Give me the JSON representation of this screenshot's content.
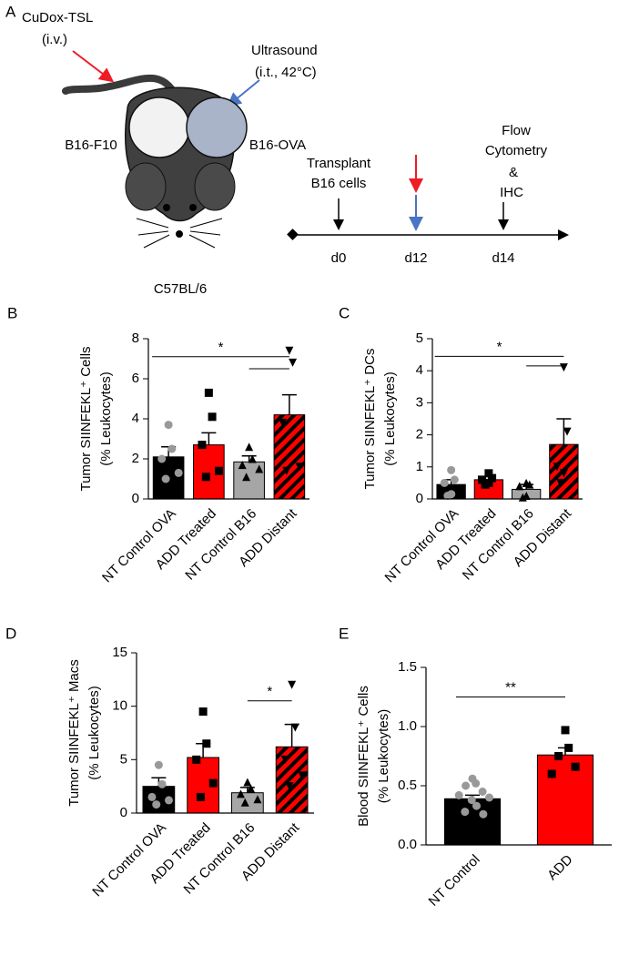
{
  "panel_a": {
    "label": "A",
    "drug": "CuDox-TSL",
    "drug_route": "(i.v.)",
    "ultrasound": "Ultrasound",
    "ultrasound_cond": "(i.t., 42°C)",
    "left_tumor": "B16-F10",
    "right_tumor": "B16-OVA",
    "strain": "C57BL/6",
    "timeline": [
      {
        "day": "d0",
        "event": [
          "Transplant",
          "B16 cells"
        ]
      },
      {
        "day": "d12",
        "event": []
      },
      {
        "day": "d14",
        "event": [
          "Flow",
          "Cytometry",
          "&",
          "IHC"
        ]
      }
    ]
  },
  "chart_data": [
    {
      "type": "bar",
      "panel": "B",
      "ylabel": [
        "Tumor SIINFEKL⁺ Cells",
        "(% Leukocytes)"
      ],
      "categories": [
        "NT Control OVA",
        "ADD Treated",
        "NT Control B16",
        "ADD Distant"
      ],
      "values": [
        2.1,
        2.7,
        1.85,
        4.2
      ],
      "errors": [
        0.5,
        0.6,
        0.3,
        1.0
      ],
      "colors": [
        "#000000",
        "#ff0000",
        "#a6a6a6",
        "#ff0000"
      ],
      "hatched": [
        false,
        false,
        false,
        true
      ],
      "markers": [
        "circle",
        "square",
        "triangle-up",
        "triangle-down"
      ],
      "point_colors": [
        "#999999",
        "#000000",
        "#000000",
        "#000000"
      ],
      "points": [
        [
          3.7,
          2.5,
          2.0,
          1.3,
          1.0
        ],
        [
          5.3,
          4.1,
          2.7,
          1.4,
          1.1
        ],
        [
          2.6,
          2.0,
          1.7,
          1.5,
          1.1
        ],
        [
          7.4,
          6.8,
          3.8,
          1.6,
          1.4
        ]
      ],
      "ylim": [
        0,
        8
      ],
      "yticks": [
        0,
        2,
        4,
        6,
        8
      ],
      "significance": [
        {
          "from": 0,
          "to": 3,
          "y": 7.1,
          "label": "*"
        },
        {
          "from": 2,
          "to": 3,
          "y": 6.5
        }
      ]
    },
    {
      "type": "bar",
      "panel": "C",
      "ylabel": [
        "Tumor SIINFEKL⁺ DCs",
        "(% Leukocytes)"
      ],
      "categories": [
        "NT Control OVA",
        "ADD Treated",
        "NT Control B16",
        "ADD Distant"
      ],
      "values": [
        0.45,
        0.6,
        0.3,
        1.7
      ],
      "errors": [
        0.15,
        0.1,
        0.15,
        0.8
      ],
      "colors": [
        "#000000",
        "#ff0000",
        "#a6a6a6",
        "#ff0000"
      ],
      "hatched": [
        false,
        false,
        false,
        true
      ],
      "markers": [
        "circle",
        "square",
        "triangle-up",
        "triangle-down"
      ],
      "point_colors": [
        "#999999",
        "#000000",
        "#000000",
        "#000000"
      ],
      "points": [
        [
          0.9,
          0.6,
          0.5,
          0.15,
          0.1
        ],
        [
          0.8,
          0.65,
          0.6,
          0.5,
          0.45
        ],
        [
          0.5,
          0.45,
          0.4,
          0.1,
          0.05
        ],
        [
          4.1,
          2.1,
          1.0,
          0.8,
          0.5
        ]
      ],
      "ylim": [
        0,
        5
      ],
      "yticks": [
        0,
        1,
        2,
        3,
        4,
        5
      ],
      "significance": [
        {
          "from": 0,
          "to": 3,
          "y": 4.45,
          "label": "*"
        },
        {
          "from": 2,
          "to": 3,
          "y": 4.15
        }
      ]
    },
    {
      "type": "bar",
      "panel": "D",
      "ylabel": [
        "Tumor SIINFEKL⁺ Macs",
        "(% Leukocytes)"
      ],
      "categories": [
        "NT Control OVA",
        "ADD Treated",
        "NT Control B16",
        "ADD Distant"
      ],
      "values": [
        2.5,
        5.2,
        1.9,
        6.2
      ],
      "errors": [
        0.8,
        1.3,
        0.5,
        2.1
      ],
      "colors": [
        "#000000",
        "#ff0000",
        "#a6a6a6",
        "#ff0000"
      ],
      "hatched": [
        false,
        false,
        false,
        true
      ],
      "markers": [
        "circle",
        "square",
        "triangle-up",
        "triangle-down"
      ],
      "point_colors": [
        "#999999",
        "#000000",
        "#000000",
        "#000000"
      ],
      "points": [
        [
          4.5,
          2.7,
          1.5,
          1.2,
          0.8
        ],
        [
          9.5,
          6.5,
          5.0,
          2.8,
          1.5
        ],
        [
          2.9,
          2.3,
          1.8,
          1.3,
          1.0
        ],
        [
          12.0,
          8.0,
          5.0,
          3.5,
          2.5
        ]
      ],
      "ylim": [
        0,
        15
      ],
      "yticks": [
        0,
        5,
        10,
        15
      ],
      "significance": [
        {
          "from": 2,
          "to": 3,
          "y": 10.5,
          "label": "*"
        }
      ]
    },
    {
      "type": "bar",
      "panel": "E",
      "ylabel": [
        "Blood SIINFEKL⁺ Cells",
        "(% Leukocytes)"
      ],
      "categories": [
        "NT Control",
        "ADD"
      ],
      "values": [
        0.39,
        0.76
      ],
      "errors": [
        0.03,
        0.06
      ],
      "colors": [
        "#000000",
        "#ff0000"
      ],
      "hatched": [
        false,
        false
      ],
      "markers": [
        "circle",
        "square"
      ],
      "point_colors": [
        "#999999",
        "#000000"
      ],
      "points": [
        [
          0.56,
          0.52,
          0.5,
          0.45,
          0.42,
          0.4,
          0.38,
          0.33,
          0.28,
          0.26
        ],
        [
          0.97,
          0.82,
          0.75,
          0.66,
          0.6
        ]
      ],
      "ylim": [
        0,
        1.5
      ],
      "yticks": [
        {
          "value": 0,
          "label": "0.0"
        },
        {
          "value": 0.5,
          "label": "0.5"
        },
        {
          "value": 1,
          "label": "1.0"
        },
        {
          "value": 1.5,
          "label": "1.5"
        }
      ],
      "significance": [
        {
          "from": 0,
          "to": 1,
          "y": 1.25,
          "label": "**"
        }
      ]
    }
  ]
}
